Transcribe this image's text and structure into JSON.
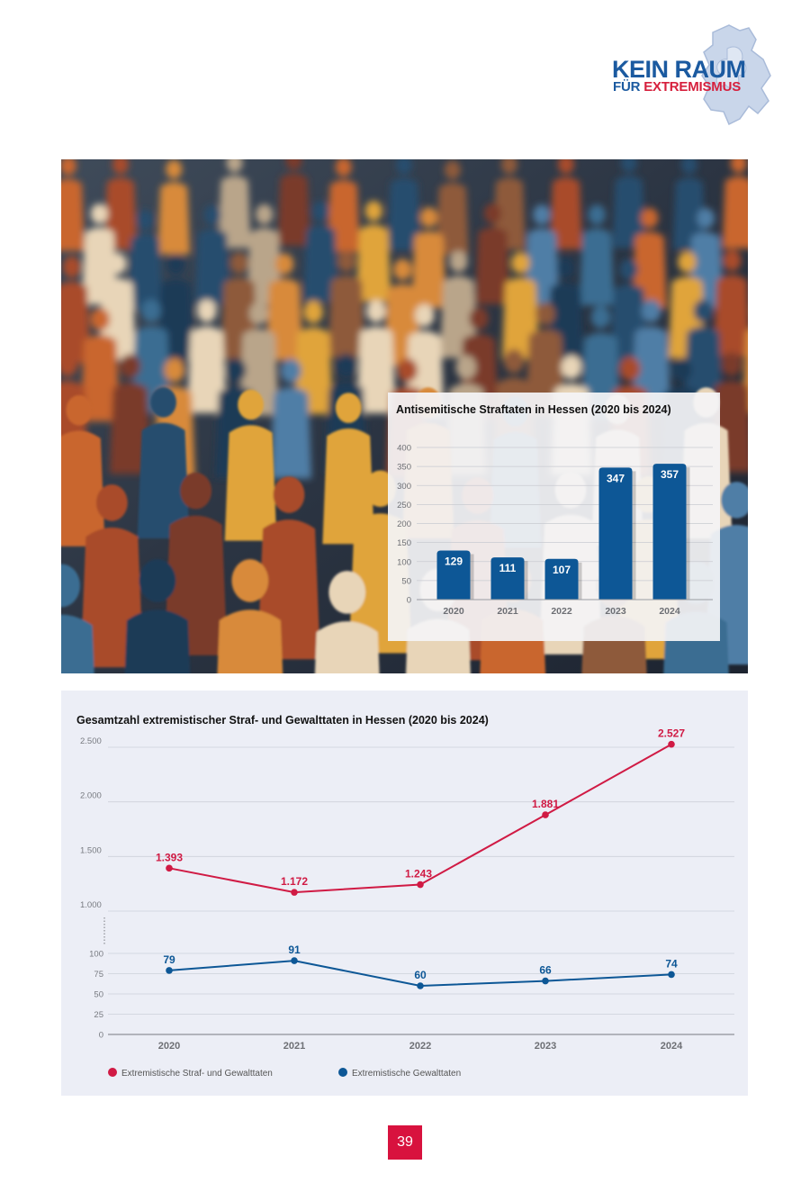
{
  "logo": {
    "line1": "KEIN RAUM",
    "line2_part1": "FÜR",
    "line2_part2": "EXTREMISMUS",
    "blue": "#1b5aa0",
    "red": "#d61f3c"
  },
  "page_number": "39",
  "colors": {
    "bar": "#0d5796",
    "line_red": "#d01a44",
    "line_blue": "#0d5796",
    "page_badge": "#d8123e"
  },
  "chart_data": [
    {
      "type": "bar",
      "title": "Antisemitische Straftaten in Hessen (2020 bis 2024)",
      "categories": [
        "2020",
        "2021",
        "2022",
        "2023",
        "2024"
      ],
      "values": [
        129,
        111,
        107,
        347,
        357
      ],
      "ylim": [
        0,
        400
      ],
      "yticks": [
        "0",
        "50",
        "100",
        "150",
        "200",
        "250",
        "300",
        "350",
        "400"
      ],
      "grid": true
    },
    {
      "type": "line",
      "title": "Gesamtzahl extremistischer Straf- und Gewalttaten in Hessen (2020 bis 2024)",
      "x": [
        "2020",
        "2021",
        "2022",
        "2023",
        "2024"
      ],
      "series": [
        {
          "name": "Extremistische Straf- und Gewalttaten",
          "values": [
            1393,
            1172,
            1243,
            1881,
            2527
          ],
          "labels": [
            "1.393",
            "1.172",
            "1.243",
            "1.881",
            "2.527"
          ]
        },
        {
          "name": "Extremistische Gewalttaten",
          "values": [
            79,
            91,
            60,
            66,
            74
          ],
          "labels": [
            "79",
            "91",
            "60",
            "66",
            "74"
          ]
        }
      ],
      "yticks_upper": [
        "1.000",
        "1.500",
        "2.000",
        "2.500"
      ],
      "yticks_lower": [
        "0",
        "25",
        "50",
        "75",
        "100"
      ],
      "broken_axis": true,
      "legend_placement": "bottom-left",
      "grid": true
    }
  ]
}
